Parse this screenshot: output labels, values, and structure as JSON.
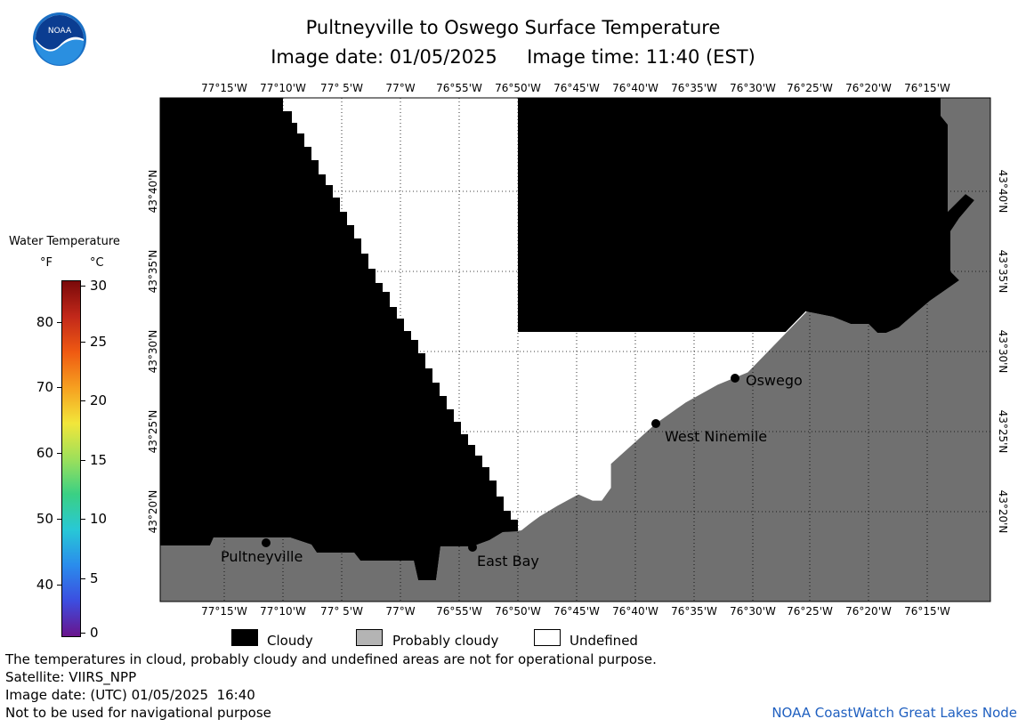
{
  "header": {
    "title": "Pultneyville to Oswego Surface Temperature",
    "subtitle": "Image date: 01/05/2025     Image time: 11:40 (EST)",
    "logo_text": "NOAA"
  },
  "legend_scale": {
    "title": "Water Temperature",
    "unit_f": "°F",
    "unit_c": "°C",
    "f_ticks": [
      "80",
      "70",
      "60",
      "50",
      "40"
    ],
    "c_ticks": [
      "30",
      "25",
      "20",
      "15",
      "10",
      "5",
      "0"
    ]
  },
  "map": {
    "lon_labels": [
      "77°15'W",
      "77°10'W",
      "77° 5'W",
      "77°W",
      "76°55'W",
      "76°50'W",
      "76°45'W",
      "76°40'W",
      "76°35'W",
      "76°30'W",
      "76°25'W",
      "76°20'W",
      "76°15'W"
    ],
    "lat_labels": [
      "43°40'N",
      "43°35'N",
      "43°30'N",
      "43°25'N",
      "43°20'N"
    ],
    "cities": [
      {
        "name": "Oswego"
      },
      {
        "name": "West Ninemile"
      },
      {
        "name": "Pultneyville"
      },
      {
        "name": "East Bay"
      }
    ],
    "colors": {
      "cloudy": "#000000",
      "probably_cloudy": "#707070",
      "undefined": "#ffffff"
    }
  },
  "legend": {
    "cloudy": "Cloudy",
    "probably_cloudy": "Probably cloudy",
    "undefined": "Undefined"
  },
  "footer": {
    "note": "The temperatures in cloud, probably cloudy and undefined areas are not for operational purpose.",
    "satellite": "Satellite: VIIRS_NPP",
    "utc": "Image date: (UTC) 01/05/2025  16:40",
    "nav": "Not to be used for navigational purpose",
    "credit": "NOAA CoastWatch Great Lakes Node"
  }
}
